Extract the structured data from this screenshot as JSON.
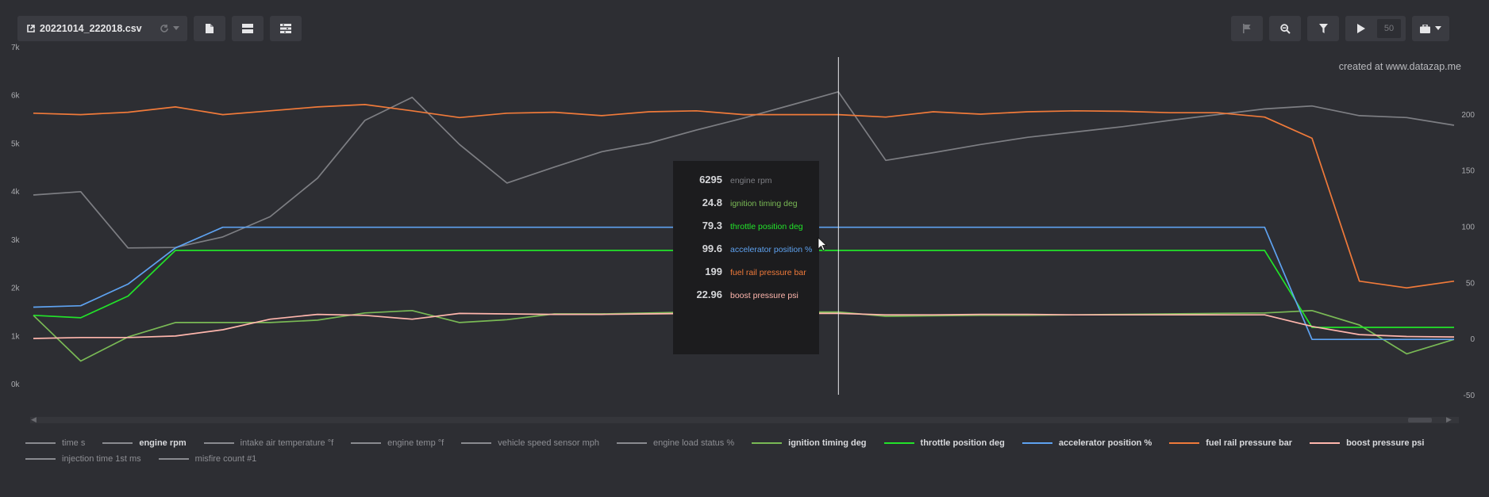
{
  "toolbar": {
    "file_name": "20221014_222018.csv",
    "play_count": "50"
  },
  "watermark": "created at www.datazap.me",
  "chart_data": {
    "type": "line",
    "x": [
      0,
      1,
      2,
      3,
      4,
      5,
      6,
      7,
      8,
      9,
      10,
      11,
      12,
      13,
      14,
      15,
      16,
      17,
      18,
      19,
      20,
      21,
      22,
      23,
      24,
      25,
      26,
      27,
      28,
      29,
      30
    ],
    "yaxis_left": {
      "ticks": [
        "7k",
        "6k",
        "5k",
        "4k",
        "3k",
        "2k",
        "1k",
        "0k"
      ],
      "range": [
        0,
        7000
      ]
    },
    "yaxis_right": {
      "ticks": [
        "200",
        "150",
        "100",
        "50",
        "0",
        "-50"
      ],
      "range": [
        -50,
        250
      ]
    },
    "series": [
      {
        "name": "engine rpm",
        "color": "#7d7e83",
        "axis": "left",
        "values": [
          4150,
          4220,
          3050,
          3060,
          3280,
          3700,
          4500,
          5700,
          6180,
          5200,
          4400,
          4730,
          5050,
          5230,
          5500,
          5750,
          6020,
          6295,
          4870,
          5030,
          5200,
          5350,
          5460,
          5570,
          5700,
          5820,
          5940,
          6000,
          5800,
          5760,
          5600
        ]
      },
      {
        "name": "ignition timing deg",
        "color": "#79b955",
        "axis": "left",
        "values": [
          1650,
          700,
          1200,
          1500,
          1500,
          1500,
          1550,
          1700,
          1750,
          1500,
          1560,
          1680,
          1680,
          1700,
          1720,
          1720,
          1720,
          1720,
          1630,
          1640,
          1650,
          1650,
          1660,
          1670,
          1680,
          1690,
          1700,
          1750,
          1450,
          850,
          1150
        ]
      },
      {
        "name": "throttle position deg",
        "color": "#22e32a",
        "axis": "left",
        "values": [
          1650,
          1600,
          2050,
          3000,
          3000,
          3000,
          3000,
          3000,
          3000,
          3000,
          3000,
          3000,
          3000,
          3000,
          3000,
          3000,
          3000,
          3000,
          3000,
          3000,
          3000,
          3000,
          3000,
          3000,
          3000,
          3000,
          3000,
          1400,
          1400,
          1400,
          1400
        ]
      },
      {
        "name": "accelerator position %",
        "color": "#5ea2f0",
        "axis": "left",
        "values": [
          1820,
          1850,
          2300,
          3050,
          3480,
          3480,
          3480,
          3480,
          3480,
          3480,
          3480,
          3480,
          3480,
          3480,
          3480,
          3480,
          3480,
          3480,
          3480,
          3480,
          3480,
          3480,
          3480,
          3480,
          3480,
          3480,
          3480,
          1150,
          1150,
          1150,
          1150
        ]
      },
      {
        "name": "fuel rail pressure bar",
        "color": "#f07a3a",
        "axis": "left",
        "values": [
          5850,
          5820,
          5870,
          5980,
          5820,
          5900,
          5980,
          6030,
          5900,
          5760,
          5850,
          5870,
          5800,
          5880,
          5900,
          5820,
          5820,
          5820,
          5770,
          5880,
          5830,
          5880,
          5900,
          5890,
          5860,
          5860,
          5770,
          5330,
          2360,
          2220,
          2360
        ]
      },
      {
        "name": "boost pressure psi",
        "color": "#ffb6ad",
        "axis": "left",
        "values": [
          1170,
          1190,
          1190,
          1220,
          1350,
          1570,
          1670,
          1650,
          1570,
          1690,
          1680,
          1670,
          1670,
          1680,
          1690,
          1690,
          1690,
          1690,
          1660,
          1660,
          1670,
          1670,
          1660,
          1660,
          1660,
          1660,
          1660,
          1420,
          1250,
          1210,
          1200
        ]
      }
    ],
    "cursor_index": 17
  },
  "tooltip": {
    "rows": [
      {
        "value": "6295",
        "label": "engine rpm",
        "color": "#7d7e83"
      },
      {
        "value": "24.8",
        "label": "ignition timing deg",
        "color": "#79b955"
      },
      {
        "value": "79.3",
        "label": "throttle position deg",
        "color": "#22e32a"
      },
      {
        "value": "99.6",
        "label": "accelerator position %",
        "color": "#5ea2f0"
      },
      {
        "value": "199",
        "label": "fuel rail pressure bar",
        "color": "#f07a3a"
      },
      {
        "value": "22.96",
        "label": "boost pressure psi",
        "color": "#ffb6ad"
      }
    ]
  },
  "legend": [
    {
      "label": "time s",
      "color": "#8a8b90",
      "bold": false
    },
    {
      "label": "engine rpm",
      "color": "#8a8b90",
      "bold": true
    },
    {
      "label": "intake air temperature °f",
      "color": "#8a8b90",
      "bold": false
    },
    {
      "label": "engine temp °f",
      "color": "#8a8b90",
      "bold": false
    },
    {
      "label": "vehicle speed sensor mph",
      "color": "#8a8b90",
      "bold": false
    },
    {
      "label": "engine load status %",
      "color": "#8a8b90",
      "bold": false
    },
    {
      "label": "ignition timing deg",
      "color": "#79b955",
      "bold": true
    },
    {
      "label": "throttle position deg",
      "color": "#22e32a",
      "bold": true
    },
    {
      "label": "accelerator position %",
      "color": "#5ea2f0",
      "bold": true
    },
    {
      "label": "fuel rail pressure bar",
      "color": "#f07a3a",
      "bold": true
    },
    {
      "label": "boost pressure psi",
      "color": "#ffb6ad",
      "bold": true
    },
    {
      "label": "injection time 1st ms",
      "color": "#8a8b90",
      "bold": false
    },
    {
      "label": "misfire count #1",
      "color": "#8a8b90",
      "bold": false
    }
  ]
}
